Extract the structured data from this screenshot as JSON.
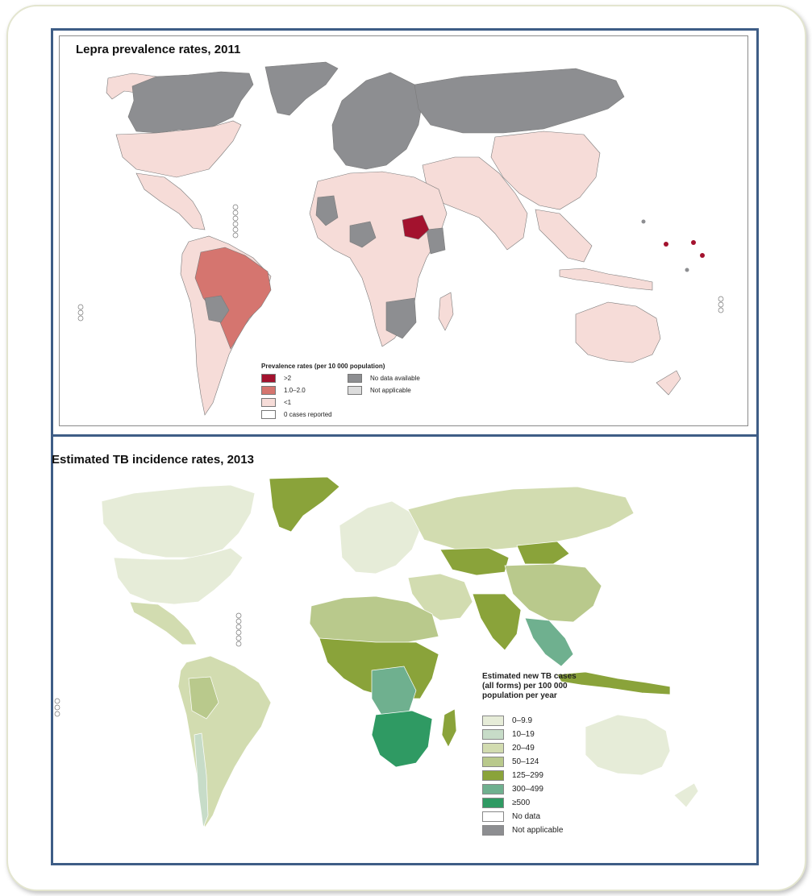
{
  "map1": {
    "title": "Lepra prevalence rates, 2011",
    "legend_title": "Prevalence rates (per 10 000 population)",
    "legend": [
      {
        "label": ">2",
        "color": "#a3122e"
      },
      {
        "label": "1.0–2.0",
        "color": "#d5756f"
      },
      {
        "label": "<1",
        "color": "#f6dcd8"
      },
      {
        "label": "0 cases reported",
        "color": "#ffffff"
      },
      {
        "label": "No data available",
        "color": "#8d8e91"
      },
      {
        "label": "Not applicable",
        "color": "#dcdcdc"
      }
    ]
  },
  "map2": {
    "title": "Estimated TB incidence rates, 2013",
    "legend_title": "Estimated new TB cases (all forms) per 100 000 population per year",
    "legend": [
      {
        "label": "0–9.9",
        "color": "#e6ecd8"
      },
      {
        "label": "10–19",
        "color": "#c7dcc8"
      },
      {
        "label": "20–49",
        "color": "#d2dcb0"
      },
      {
        "label": "50–124",
        "color": "#b9c98c"
      },
      {
        "label": "125–299",
        "color": "#8aa33a"
      },
      {
        "label": "300–499",
        "color": "#6fb08f"
      },
      {
        "label": "≥500",
        "color": "#2f9a63"
      },
      {
        "label": "No data",
        "color": "#ffffff"
      },
      {
        "label": "Not applicable",
        "color": "#8d8e91"
      }
    ]
  }
}
